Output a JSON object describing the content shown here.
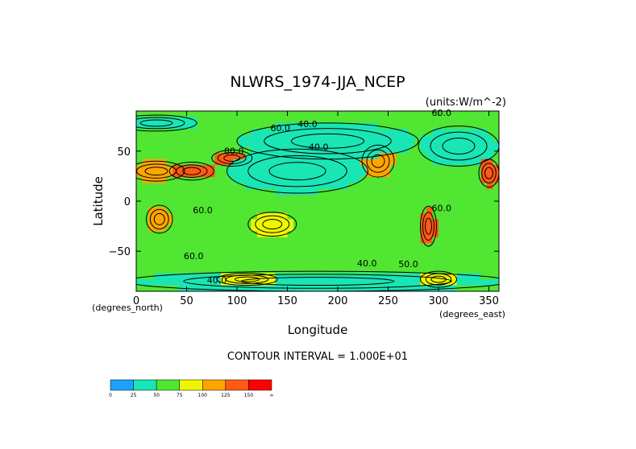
{
  "chart_data": {
    "type": "heatmap",
    "title": "NLWRS_1974-JJA_NCEP",
    "units": "(units:W/m^-2)",
    "xlabel": "Longitude",
    "ylabel": "Latitude",
    "x_unit_note": "(degrees_east)",
    "y_unit_note": "(degrees_north)",
    "xlim": [
      0,
      360
    ],
    "ylim": [
      -90,
      90
    ],
    "x_ticks": [
      {
        "value": 0,
        "label": "0"
      },
      {
        "value": 50,
        "label": "50"
      },
      {
        "value": 100,
        "label": "100"
      },
      {
        "value": 150,
        "label": "150"
      },
      {
        "value": 200,
        "label": "200"
      },
      {
        "value": 250,
        "label": "250"
      },
      {
        "value": 300,
        "label": "300"
      },
      {
        "value": 350,
        "label": "350"
      }
    ],
    "y_ticks": [
      {
        "value": 50,
        "label": "50"
      },
      {
        "value": 0,
        "label": "0"
      },
      {
        "value": -50,
        "label": "−50"
      }
    ],
    "contour_interval_text": "CONTOUR INTERVAL = 1.000E+01",
    "contour_labels": [
      {
        "lon": 170,
        "lat": 74,
        "text": "40.0"
      },
      {
        "lon": 143,
        "lat": 70,
        "text": "60.0"
      },
      {
        "lon": 181,
        "lat": 51,
        "text": "40.0"
      },
      {
        "lon": 303,
        "lat": 85,
        "text": "60.0"
      },
      {
        "lon": 97,
        "lat": 47,
        "text": "80.0"
      },
      {
        "lon": 66,
        "lat": -12,
        "text": "60.0"
      },
      {
        "lon": 303,
        "lat": -10,
        "text": "60.0"
      },
      {
        "lon": 57,
        "lat": -58,
        "text": "60.0"
      },
      {
        "lon": 229,
        "lat": -65,
        "text": "40.0"
      },
      {
        "lon": 270,
        "lat": -66,
        "text": "50.0"
      },
      {
        "lon": 80,
        "lat": -82,
        "text": "40.0"
      }
    ],
    "colorbar": {
      "colors": [
        "#1ea0ff",
        "#19e6b4",
        "#50e632",
        "#f0f500",
        "#ffa500",
        "#ff5a14",
        "#ff0000"
      ],
      "labels": [
        "0",
        "25",
        "50",
        "75",
        "100",
        "125",
        "150",
        "∞"
      ]
    },
    "field": {
      "lon_step": 6,
      "lat_step": 6,
      "background": "#50e632",
      "regions": [
        {
          "lon": 20,
          "lat": 30,
          "rlon": 28,
          "rlat": 10,
          "color": "#ffa500"
        },
        {
          "lon": 55,
          "lat": 30,
          "rlon": 22,
          "rlat": 9,
          "color": "#ff5a14"
        },
        {
          "lon": 95,
          "lat": 43,
          "rlon": 20,
          "rlat": 8,
          "color": "#ff5a14"
        },
        {
          "lon": 135,
          "lat": -23,
          "rlon": 24,
          "rlat": 12,
          "color": "#f0f500"
        },
        {
          "lon": 23,
          "lat": -18,
          "rlon": 13,
          "rlat": 14,
          "color": "#ffa500"
        },
        {
          "lon": 240,
          "lat": 40,
          "rlon": 16,
          "rlat": 16,
          "color": "#ffa500"
        },
        {
          "lon": 290,
          "lat": -25,
          "rlon": 8,
          "rlat": 20,
          "color": "#ff5a14"
        },
        {
          "lon": 350,
          "lat": 28,
          "rlon": 10,
          "rlat": 14,
          "color": "#ff5a14"
        },
        {
          "lon": 160,
          "lat": 30,
          "rlon": 70,
          "rlat": 22,
          "color": "#19e6b4"
        },
        {
          "lon": 190,
          "lat": 60,
          "rlon": 90,
          "rlat": 18,
          "color": "#19e6b4"
        },
        {
          "lon": 320,
          "lat": 55,
          "rlon": 40,
          "rlat": 20,
          "color": "#19e6b4"
        },
        {
          "lon": 180,
          "lat": -80,
          "rlon": 190,
          "rlat": 10,
          "color": "#19e6b4"
        },
        {
          "lon": 20,
          "lat": 78,
          "rlon": 40,
          "rlat": 8,
          "color": "#19e6b4"
        },
        {
          "lon": 300,
          "lat": -78,
          "rlon": 18,
          "rlat": 8,
          "color": "#f0f500"
        },
        {
          "lon": 110,
          "lat": -78,
          "rlon": 30,
          "rlat": 6,
          "color": "#f0f500"
        }
      ]
    }
  }
}
